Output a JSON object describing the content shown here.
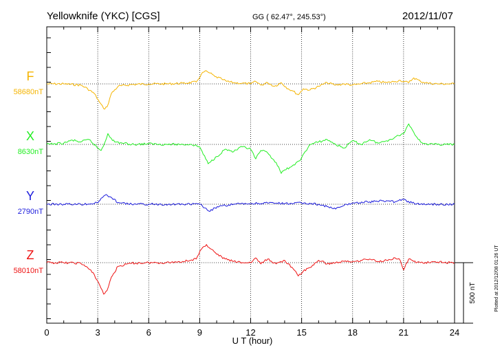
{
  "header": {
    "station": "Yellowknife (YKC)  [CGS]",
    "coords": "GG ( 62.47°, 245.53°)",
    "date": "2012/11/07"
  },
  "plotted_note": "Plotted at 2012/12/08 01:26 UT",
  "scale_bar_label": "500 nT",
  "chart_data": {
    "type": "line",
    "title": "Yellowknife (YKC)  [CGS]",
    "xlabel": "U T (hour)",
    "xlim": [
      0,
      24
    ],
    "xticks": [
      "0",
      "3",
      "6",
      "9",
      "12",
      "15",
      "18",
      "21",
      "24"
    ],
    "x_tick_values": [
      0,
      3,
      6,
      9,
      12,
      15,
      18,
      21,
      24
    ],
    "scale_bar_nT": 500,
    "grid": true,
    "series": [
      {
        "name": "F",
        "baseline_label": "58680nT",
        "baseline_nT": 58680,
        "color": "#f5b400",
        "x": [
          0,
          1,
          2,
          2.4,
          2.8,
          3.1,
          3.35,
          3.55,
          3.8,
          4.2,
          5,
          6,
          7,
          8,
          8.8,
          9.1,
          9.3,
          9.6,
          9.9,
          10.3,
          10.6,
          11,
          11.5,
          12,
          12.3,
          12.6,
          13,
          13.4,
          13.8,
          14.2,
          14.5,
          14.8,
          15.1,
          15.5,
          16,
          16.5,
          17,
          17.5,
          18,
          18.5,
          19,
          19.5,
          20,
          20.5,
          20.8,
          21,
          21.3,
          21.6,
          22,
          22.5,
          23,
          23.5,
          24
        ],
        "y": [
          0,
          0,
          -10,
          -40,
          -80,
          -150,
          -205,
          -190,
          -80,
          -20,
          -5,
          0,
          0,
          5,
          15,
          80,
          105,
          90,
          60,
          40,
          20,
          10,
          5,
          0,
          20,
          -10,
          10,
          -20,
          10,
          -40,
          -60,
          -90,
          -40,
          -50,
          -20,
          10,
          -10,
          0,
          -10,
          0,
          10,
          20,
          10,
          20,
          30,
          20,
          10,
          50,
          20,
          5,
          0,
          0,
          0
        ]
      },
      {
        "name": "X",
        "baseline_label": "8630nT",
        "baseline_nT": 8630,
        "color": "#22ee22",
        "x": [
          0,
          0.5,
          1,
          1.5,
          2,
          2.5,
          3,
          3.2,
          3.4,
          3.6,
          3.8,
          4,
          5,
          6,
          7,
          8,
          8.5,
          9,
          9.5,
          10,
          10.5,
          11,
          11.5,
          12,
          12.3,
          12.6,
          13,
          13.5,
          13.8,
          14,
          14.3,
          14.6,
          15,
          15.5,
          16,
          16.5,
          17,
          17.5,
          18,
          18.5,
          19,
          19.5,
          20,
          20.5,
          21,
          21.3,
          21.6,
          22,
          22.5,
          23,
          24
        ],
        "y": [
          0,
          5,
          10,
          35,
          20,
          40,
          -30,
          -50,
          10,
          90,
          50,
          20,
          0,
          5,
          0,
          0,
          0,
          -20,
          -160,
          -100,
          -40,
          -60,
          -20,
          -40,
          -120,
          -50,
          -70,
          -150,
          -240,
          -210,
          -190,
          -170,
          -110,
          0,
          20,
          40,
          0,
          -30,
          30,
          0,
          40,
          10,
          30,
          60,
          90,
          170,
          100,
          20,
          0,
          0,
          0
        ]
      },
      {
        "name": "Y",
        "baseline_label": "2790nT",
        "baseline_nT": 2790,
        "color": "#1a1adc",
        "x": [
          0,
          1,
          2,
          3,
          3.2,
          3.5,
          3.9,
          4.3,
          5,
          6,
          7,
          8,
          9,
          9.3,
          9.6,
          9.9,
          10.5,
          11,
          12,
          13,
          14,
          15,
          16,
          16.5,
          17,
          17.5,
          18,
          19,
          20,
          20.5,
          21,
          21.5,
          22,
          23,
          24
        ],
        "y": [
          0,
          0,
          0,
          10,
          50,
          80,
          40,
          10,
          0,
          0,
          0,
          0,
          0,
          -30,
          -60,
          -30,
          -10,
          0,
          5,
          10,
          5,
          10,
          0,
          -20,
          -40,
          -10,
          10,
          20,
          30,
          20,
          40,
          10,
          0,
          0,
          0
        ]
      },
      {
        "name": "Z",
        "baseline_label": "58010nT",
        "baseline_nT": 58010,
        "color": "#ee1111",
        "x": [
          0,
          1,
          2,
          2.4,
          2.8,
          3.1,
          3.35,
          3.55,
          3.8,
          4.2,
          5,
          6,
          7,
          8,
          8.8,
          9.1,
          9.4,
          9.7,
          10,
          10.5,
          11,
          11.5,
          12,
          12.3,
          12.6,
          13,
          13.5,
          14,
          14.5,
          14.8,
          15.1,
          15.5,
          16,
          16.5,
          17,
          17.5,
          18,
          18.5,
          19,
          19.5,
          20,
          20.5,
          20.8,
          21,
          21.3,
          21.6,
          22,
          22.5,
          23,
          24
        ],
        "y": [
          0,
          0,
          -5,
          -40,
          -100,
          -180,
          -260,
          -230,
          -120,
          -30,
          -5,
          0,
          0,
          10,
          30,
          110,
          150,
          110,
          70,
          30,
          10,
          0,
          0,
          40,
          -10,
          30,
          -10,
          20,
          -50,
          -110,
          -70,
          -40,
          20,
          -10,
          0,
          10,
          10,
          20,
          30,
          10,
          20,
          40,
          20,
          -60,
          30,
          10,
          0,
          0,
          5,
          0
        ]
      }
    ]
  }
}
